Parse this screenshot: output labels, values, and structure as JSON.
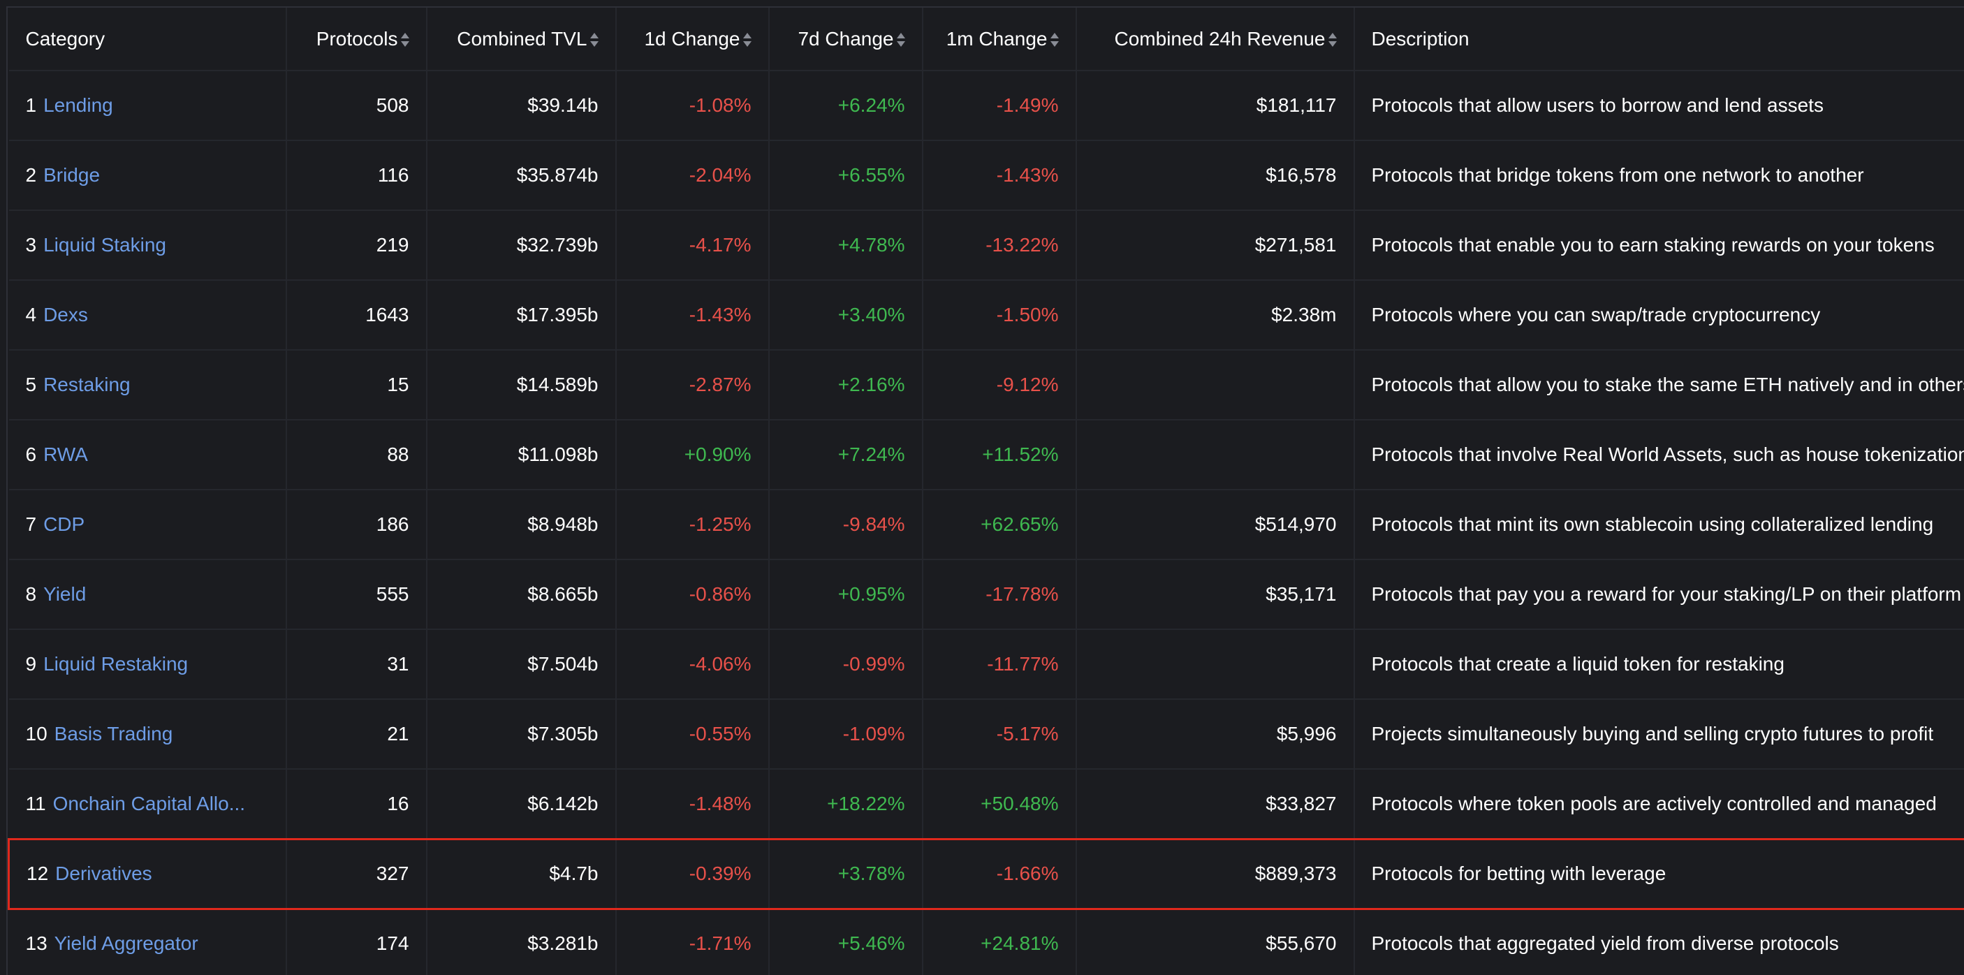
{
  "columns": {
    "category": "Category",
    "protocols": "Protocols",
    "tvl": "Combined TVL",
    "change_1d": "1d Change",
    "change_7d": "7d Change",
    "change_1m": "1m Change",
    "revenue": "Combined 24h Revenue",
    "description": "Description"
  },
  "rows": [
    {
      "rank": "1",
      "name": "Lending",
      "protocols": "508",
      "tvl": "$39.14b",
      "change_1d": "-1.08%",
      "change_7d": "+6.24%",
      "change_1m": "-1.49%",
      "revenue": "$181,117",
      "description": "Protocols that allow users to borrow and lend assets"
    },
    {
      "rank": "2",
      "name": "Bridge",
      "protocols": "116",
      "tvl": "$35.874b",
      "change_1d": "-2.04%",
      "change_7d": "+6.55%",
      "change_1m": "-1.43%",
      "revenue": "$16,578",
      "description": "Protocols that bridge tokens from one network to another"
    },
    {
      "rank": "3",
      "name": "Liquid Staking",
      "protocols": "219",
      "tvl": "$32.739b",
      "change_1d": "-4.17%",
      "change_7d": "+4.78%",
      "change_1m": "-13.22%",
      "revenue": "$271,581",
      "description": "Protocols that enable you to earn staking rewards on your tokens"
    },
    {
      "rank": "4",
      "name": "Dexs",
      "protocols": "1643",
      "tvl": "$17.395b",
      "change_1d": "-1.43%",
      "change_7d": "+3.40%",
      "change_1m": "-1.50%",
      "revenue": "$2.38m",
      "description": "Protocols where you can swap/trade cryptocurrency"
    },
    {
      "rank": "5",
      "name": "Restaking",
      "protocols": "15",
      "tvl": "$14.589b",
      "change_1d": "-2.87%",
      "change_7d": "+2.16%",
      "change_1m": "-9.12%",
      "revenue": "",
      "description": "Protocols that allow you to stake the same ETH natively and in others"
    },
    {
      "rank": "6",
      "name": "RWA",
      "protocols": "88",
      "tvl": "$11.098b",
      "change_1d": "+0.90%",
      "change_7d": "+7.24%",
      "change_1m": "+11.52%",
      "revenue": "",
      "description": "Protocols that involve Real World Assets, such as house tokenization"
    },
    {
      "rank": "7",
      "name": "CDP",
      "protocols": "186",
      "tvl": "$8.948b",
      "change_1d": "-1.25%",
      "change_7d": "-9.84%",
      "change_1m": "+62.65%",
      "revenue": "$514,970",
      "description": "Protocols that mint its own stablecoin using collateralized lending"
    },
    {
      "rank": "8",
      "name": "Yield",
      "protocols": "555",
      "tvl": "$8.665b",
      "change_1d": "-0.86%",
      "change_7d": "+0.95%",
      "change_1m": "-17.78%",
      "revenue": "$35,171",
      "description": "Protocols that pay you a reward for your staking/LP on their platform"
    },
    {
      "rank": "9",
      "name": "Liquid Restaking",
      "protocols": "31",
      "tvl": "$7.504b",
      "change_1d": "-4.06%",
      "change_7d": "-0.99%",
      "change_1m": "-11.77%",
      "revenue": "",
      "description": "Protocols that create a liquid token for restaking"
    },
    {
      "rank": "10",
      "name": "Basis Trading",
      "protocols": "21",
      "tvl": "$7.305b",
      "change_1d": "-0.55%",
      "change_7d": "-1.09%",
      "change_1m": "-5.17%",
      "revenue": "$5,996",
      "description": "Projects simultaneously buying and selling crypto futures to profit"
    },
    {
      "rank": "11",
      "name": "Onchain Capital Allo...",
      "protocols": "16",
      "tvl": "$6.142b",
      "change_1d": "-1.48%",
      "change_7d": "+18.22%",
      "change_1m": "+50.48%",
      "revenue": "$33,827",
      "description": "Protocols where token pools are actively controlled and managed"
    },
    {
      "rank": "12",
      "name": "Derivatives",
      "protocols": "327",
      "tvl": "$4.7b",
      "change_1d": "-0.39%",
      "change_7d": "+3.78%",
      "change_1m": "-1.66%",
      "revenue": "$889,373",
      "description": "Protocols for betting with leverage",
      "highlighted": true
    },
    {
      "rank": "13",
      "name": "Yield Aggregator",
      "protocols": "174",
      "tvl": "$3.281b",
      "change_1d": "-1.71%",
      "change_7d": "+5.46%",
      "change_1m": "+24.81%",
      "revenue": "$55,670",
      "description": "Protocols that aggregated yield from diverse protocols"
    }
  ],
  "colors": {
    "background": "#1b1c20",
    "link": "#6e9de6",
    "negative": "#e8514a",
    "positive": "#3fb950",
    "highlight_border": "#e0281c"
  }
}
